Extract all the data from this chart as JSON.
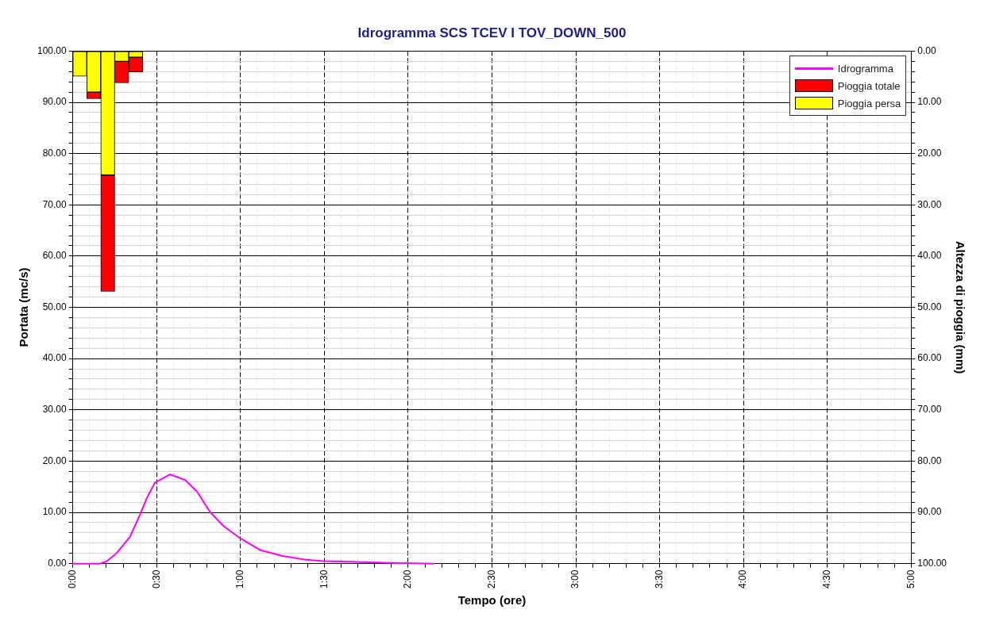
{
  "chart_data": {
    "type": "line",
    "title": "Idrogramma SCS TCEV I TOV_DOWN_500",
    "xlabel": "Tempo (ore)",
    "ylabel": "Portata (mc/s)",
    "y2label": "Altezza di pioggia (mm)",
    "series": [
      {
        "name": "Idrogramma",
        "color": "#ff00ff",
        "x": [
          0,
          0.16,
          0.2,
          0.26,
          0.34,
          0.4,
          0.44,
          0.49,
          0.58,
          0.67,
          0.74,
          0.82,
          0.9,
          1.0,
          1.12,
          1.25,
          1.38,
          1.49,
          1.6,
          1.93,
          2.15
        ],
        "values": [
          0,
          0,
          0.4,
          2.0,
          5.2,
          9.5,
          12.7,
          15.8,
          17.4,
          16.3,
          14.1,
          10.0,
          7.3,
          4.9,
          2.6,
          1.5,
          0.8,
          0.5,
          0.4,
          0.1,
          0
        ]
      },
      {
        "name": "Pioggia persa",
        "type": "bar",
        "axis": "y2",
        "color": "#ffff00",
        "x": [
          0.0417,
          0.125,
          0.2083,
          0.2917,
          0.375
        ],
        "values": [
          4.9,
          8.0,
          24.2,
          2.0,
          1.2
        ]
      },
      {
        "name": "Pioggia totale",
        "type": "bar",
        "axis": "y2",
        "color": "#ff0000",
        "x": [
          0.0417,
          0.125,
          0.2083,
          0.2917,
          0.375
        ],
        "values": [
          0,
          1.3,
          22.7,
          4.2,
          2.9
        ]
      }
    ],
    "stacked": true,
    "marker": "none",
    "grid": true,
    "legend": "top right",
    "xlim": [
      0,
      5
    ],
    "xticks": [
      {
        "value": 0,
        "label": "0:00"
      },
      {
        "value": 0.1,
        "label": null
      },
      {
        "value": 0.2,
        "label": null
      },
      {
        "value": 0.3,
        "label": null
      },
      {
        "value": 0.4,
        "label": null
      },
      {
        "value": 0.5,
        "label": "0:30"
      },
      {
        "value": 0.6,
        "label": null
      },
      {
        "value": 0.7,
        "label": null
      },
      {
        "value": 0.8,
        "label": null
      },
      {
        "value": 0.9,
        "label": null
      },
      {
        "value": 1,
        "label": "1:00"
      },
      {
        "value": 1.1,
        "label": null
      },
      {
        "value": 1.2,
        "label": null
      },
      {
        "value": 1.3,
        "label": null
      },
      {
        "value": 1.4,
        "label": null
      },
      {
        "value": 1.5,
        "label": "1:30"
      },
      {
        "value": 1.6,
        "label": null
      },
      {
        "value": 1.7,
        "label": null
      },
      {
        "value": 1.8,
        "label": null
      },
      {
        "value": 1.9,
        "label": null
      },
      {
        "value": 2,
        "label": "2:00"
      },
      {
        "value": 2.1,
        "label": null
      },
      {
        "value": 2.2,
        "label": null
      },
      {
        "value": 2.3,
        "label": null
      },
      {
        "value": 2.4,
        "label": null
      },
      {
        "value": 2.5,
        "label": "2:30"
      },
      {
        "value": 2.6,
        "label": null
      },
      {
        "value": 2.7,
        "label": null
      },
      {
        "value": 2.8,
        "label": null
      },
      {
        "value": 2.9,
        "label": null
      },
      {
        "value": 3,
        "label": "3:00"
      },
      {
        "value": 3.1,
        "label": null
      },
      {
        "value": 3.2,
        "label": null
      },
      {
        "value": 3.3,
        "label": null
      },
      {
        "value": 3.4,
        "label": null
      },
      {
        "value": 3.5,
        "label": "3:30"
      },
      {
        "value": 3.6,
        "label": null
      },
      {
        "value": 3.7,
        "label": null
      },
      {
        "value": 3.8,
        "label": null
      },
      {
        "value": 3.9,
        "label": null
      },
      {
        "value": 4,
        "label": "4:00"
      },
      {
        "value": 4.1,
        "label": null
      },
      {
        "value": 4.2,
        "label": null
      },
      {
        "value": 4.3,
        "label": null
      },
      {
        "value": 4.4,
        "label": null
      },
      {
        "value": 4.5,
        "label": "4:30"
      },
      {
        "value": 4.6,
        "label": null
      },
      {
        "value": 4.7,
        "label": null
      },
      {
        "value": 4.8,
        "label": null
      },
      {
        "value": 4.9,
        "label": null
      },
      {
        "value": 5,
        "label": "5:00"
      }
    ],
    "ylim": [
      0,
      100
    ],
    "yticks": [
      {
        "value": 0,
        "label": "0.00"
      },
      {
        "value": 2,
        "label": null
      },
      {
        "value": 4,
        "label": null
      },
      {
        "value": 6,
        "label": null
      },
      {
        "value": 8,
        "label": null
      },
      {
        "value": 10,
        "label": "10.00"
      },
      {
        "value": 12,
        "label": null
      },
      {
        "value": 14,
        "label": null
      },
      {
        "value": 16,
        "label": null
      },
      {
        "value": 18,
        "label": null
      },
      {
        "value": 20,
        "label": "20.00"
      },
      {
        "value": 22,
        "label": null
      },
      {
        "value": 24,
        "label": null
      },
      {
        "value": 26,
        "label": null
      },
      {
        "value": 28,
        "label": null
      },
      {
        "value": 30,
        "label": "30.00"
      },
      {
        "value": 32,
        "label": null
      },
      {
        "value": 34,
        "label": null
      },
      {
        "value": 36,
        "label": null
      },
      {
        "value": 38,
        "label": null
      },
      {
        "value": 40,
        "label": "40.00"
      },
      {
        "value": 42,
        "label": null
      },
      {
        "value": 44,
        "label": null
      },
      {
        "value": 46,
        "label": null
      },
      {
        "value": 48,
        "label": null
      },
      {
        "value": 50,
        "label": "50.00"
      },
      {
        "value": 52,
        "label": null
      },
      {
        "value": 54,
        "label": null
      },
      {
        "value": 56,
        "label": null
      },
      {
        "value": 58,
        "label": null
      },
      {
        "value": 60,
        "label": "60.00"
      },
      {
        "value": 62,
        "label": null
      },
      {
        "value": 64,
        "label": null
      },
      {
        "value": 66,
        "label": null
      },
      {
        "value": 68,
        "label": null
      },
      {
        "value": 70,
        "label": "70.00"
      },
      {
        "value": 72,
        "label": null
      },
      {
        "value": 74,
        "label": null
      },
      {
        "value": 76,
        "label": null
      },
      {
        "value": 78,
        "label": null
      },
      {
        "value": 80,
        "label": "80.00"
      },
      {
        "value": 82,
        "label": null
      },
      {
        "value": 84,
        "label": null
      },
      {
        "value": 86,
        "label": null
      },
      {
        "value": 88,
        "label": null
      },
      {
        "value": 90,
        "label": "90.00"
      },
      {
        "value": 92,
        "label": null
      },
      {
        "value": 94,
        "label": null
      },
      {
        "value": 96,
        "label": null
      },
      {
        "value": 98,
        "label": null
      },
      {
        "value": 100,
        "label": "100.00"
      }
    ],
    "y2lim": [
      100,
      0
    ],
    "y2ticks": [
      {
        "value": 0,
        "label": "0.00"
      },
      {
        "value": 2,
        "label": null
      },
      {
        "value": 4,
        "label": null
      },
      {
        "value": 6,
        "label": null
      },
      {
        "value": 8,
        "label": null
      },
      {
        "value": 10,
        "label": "10.00"
      },
      {
        "value": 12,
        "label": null
      },
      {
        "value": 14,
        "label": null
      },
      {
        "value": 16,
        "label": null
      },
      {
        "value": 18,
        "label": null
      },
      {
        "value": 20,
        "label": "20.00"
      },
      {
        "value": 22,
        "label": null
      },
      {
        "value": 24,
        "label": null
      },
      {
        "value": 26,
        "label": null
      },
      {
        "value": 28,
        "label": null
      },
      {
        "value": 30,
        "label": "30.00"
      },
      {
        "value": 32,
        "label": null
      },
      {
        "value": 34,
        "label": null
      },
      {
        "value": 36,
        "label": null
      },
      {
        "value": 38,
        "label": null
      },
      {
        "value": 40,
        "label": "40.00"
      },
      {
        "value": 42,
        "label": null
      },
      {
        "value": 44,
        "label": null
      },
      {
        "value": 46,
        "label": null
      },
      {
        "value": 48,
        "label": null
      },
      {
        "value": 50,
        "label": "50.00"
      },
      {
        "value": 52,
        "label": null
      },
      {
        "value": 54,
        "label": null
      },
      {
        "value": 56,
        "label": null
      },
      {
        "value": 58,
        "label": null
      },
      {
        "value": 60,
        "label": "60.00"
      },
      {
        "value": 62,
        "label": null
      },
      {
        "value": 64,
        "label": null
      },
      {
        "value": 66,
        "label": null
      },
      {
        "value": 68,
        "label": null
      },
      {
        "value": 70,
        "label": "70.00"
      },
      {
        "value": 72,
        "label": null
      },
      {
        "value": 74,
        "label": null
      },
      {
        "value": 76,
        "label": null
      },
      {
        "value": 78,
        "label": null
      },
      {
        "value": 80,
        "label": "80.00"
      },
      {
        "value": 82,
        "label": null
      },
      {
        "value": 84,
        "label": null
      },
      {
        "value": 86,
        "label": null
      },
      {
        "value": 88,
        "label": null
      },
      {
        "value": 90,
        "label": "90.00"
      },
      {
        "value": 92,
        "label": null
      },
      {
        "value": 94,
        "label": null
      },
      {
        "value": 96,
        "label": null
      },
      {
        "value": 98,
        "label": null
      },
      {
        "value": 100,
        "label": "100.00"
      }
    ]
  }
}
